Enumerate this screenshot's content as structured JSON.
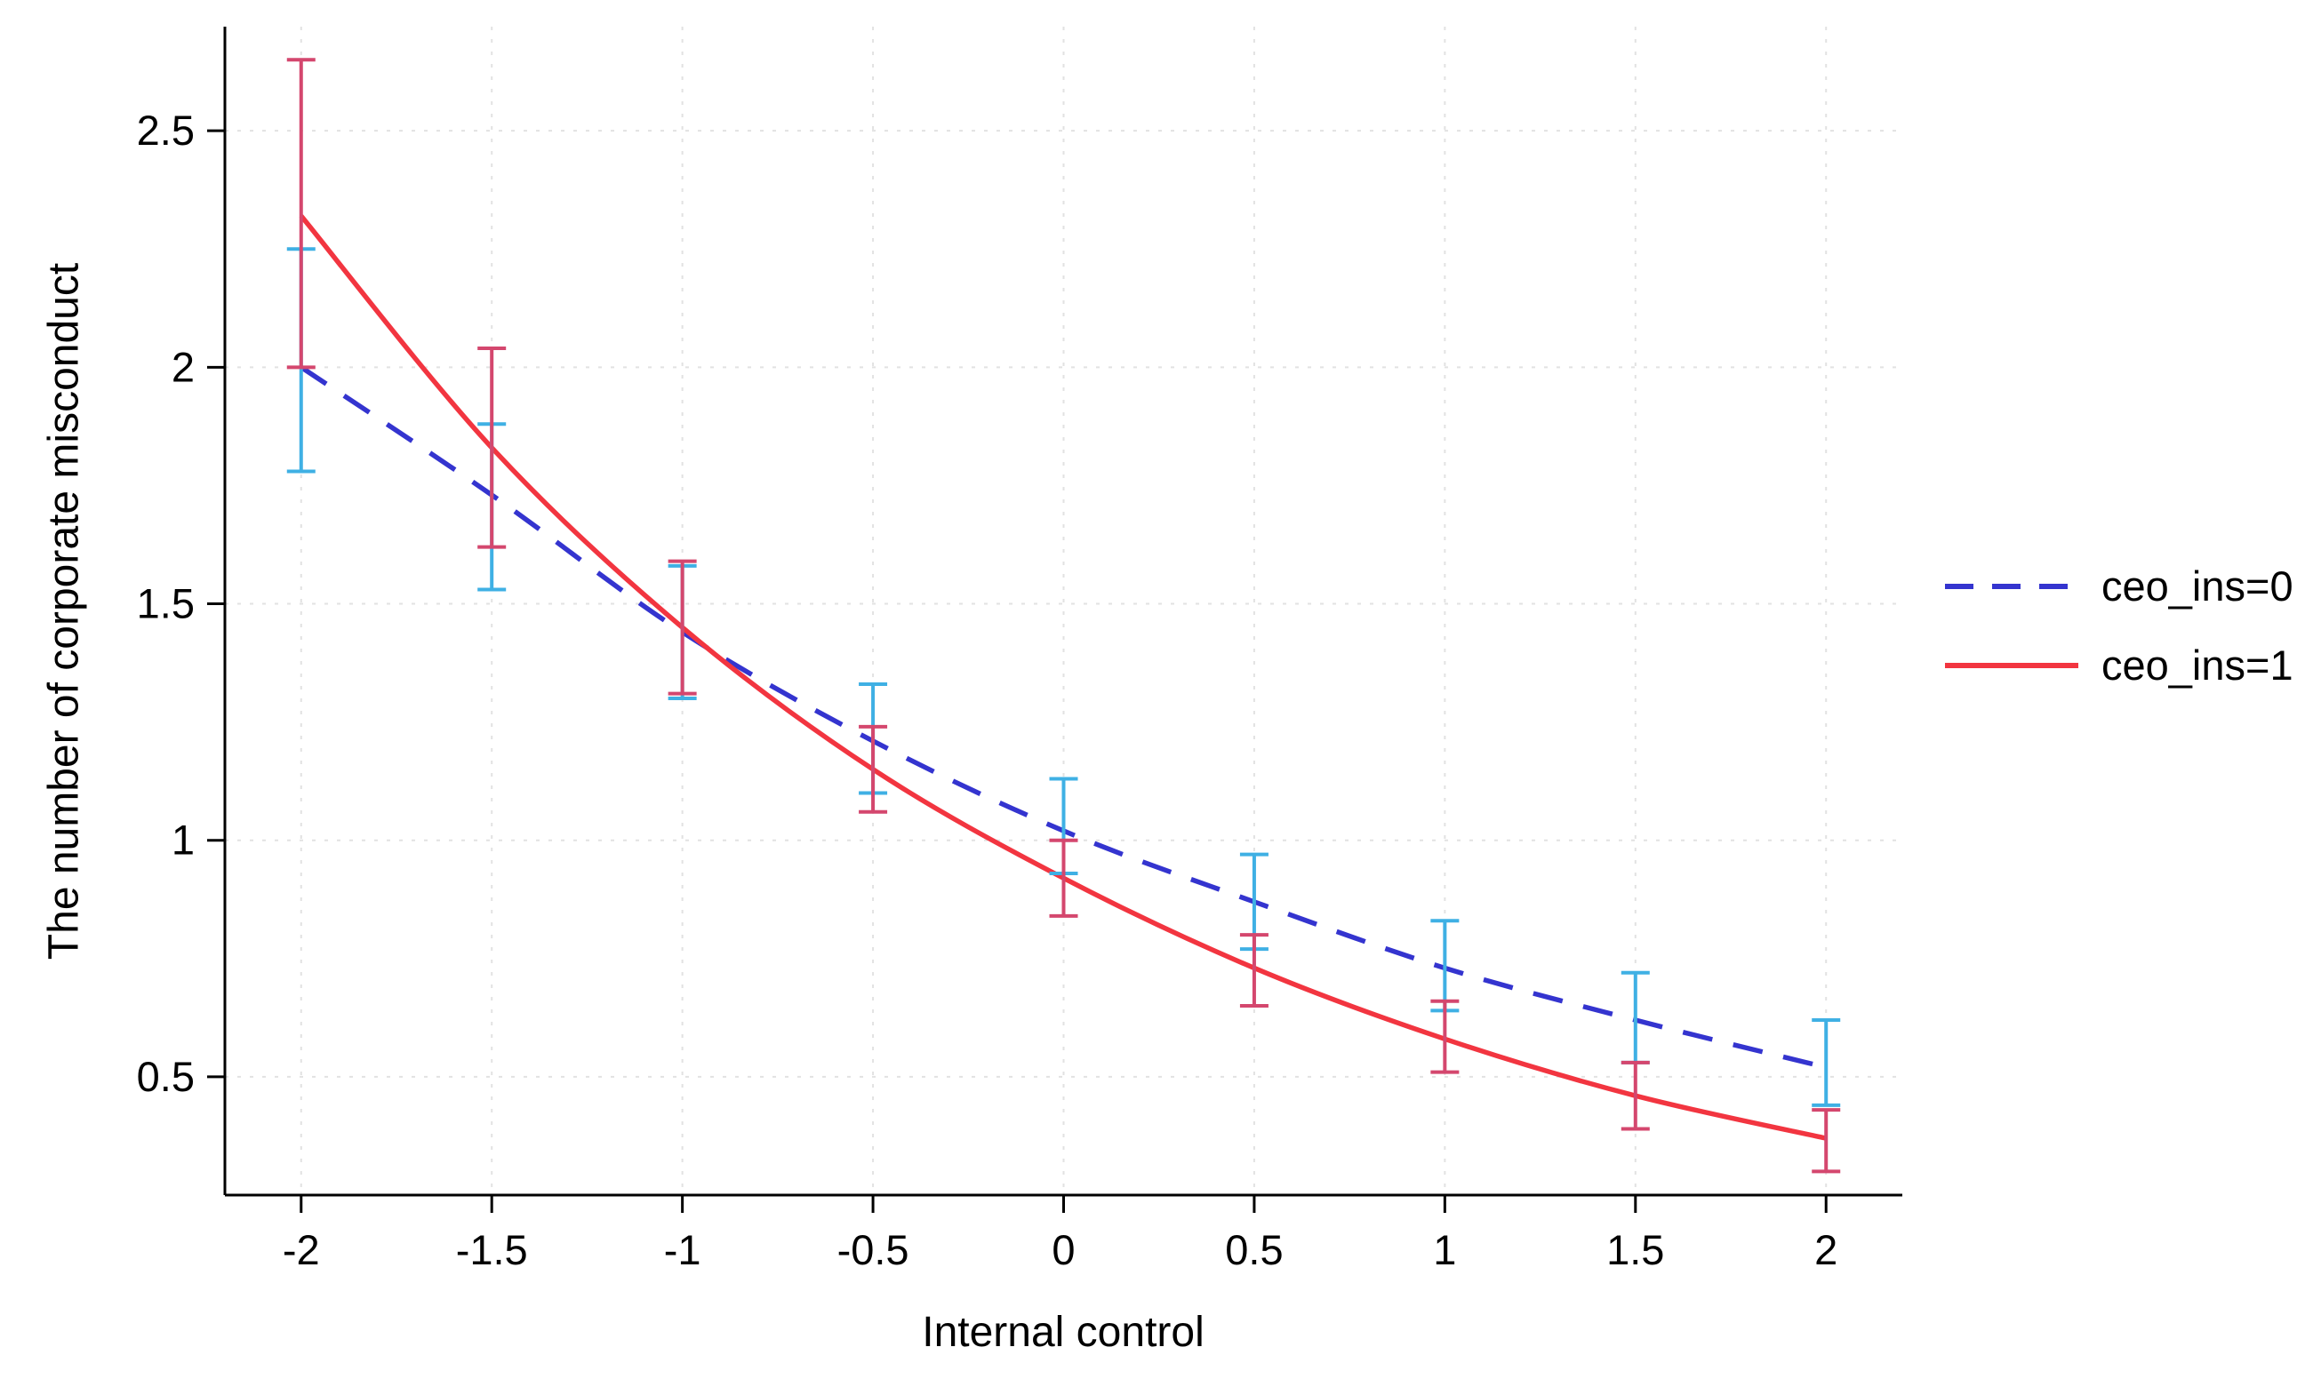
{
  "page": {
    "background": "#ffffff",
    "text_color": "#000000",
    "grid_color": "#e2e2e2",
    "axis_color": "#000000"
  },
  "chart_data": {
    "type": "line",
    "title": "",
    "xlabel": "Internal control",
    "ylabel": "The number of corporate misconduct",
    "x": [
      -2,
      -1.5,
      -1,
      -0.5,
      0,
      0.5,
      1,
      1.5,
      2
    ],
    "xticks": [
      "-2",
      "-1.5",
      "-1",
      "-0.5",
      "0",
      "0.5",
      "1",
      "1.5",
      "2"
    ],
    "yticks": [
      "0.5",
      "1",
      "1.5",
      "2",
      "2.5"
    ],
    "ytick_values": [
      0.5,
      1,
      1.5,
      2,
      2.5
    ],
    "xtick_values": [
      -2,
      -1.5,
      -1,
      -0.5,
      0,
      0.5,
      1,
      1.5,
      2
    ],
    "xlim": [
      -2.2,
      2.2
    ],
    "ylim": [
      0.25,
      2.72
    ],
    "grid": true,
    "legend_position": "right",
    "series": [
      {
        "name": "ceo_ins=0",
        "style": "dashed",
        "line_color": "#3434cf",
        "ci_color": "#3fb0e4",
        "values": [
          2.0,
          1.73,
          1.44,
          1.21,
          1.02,
          0.87,
          0.73,
          0.62,
          0.52
        ],
        "ci_low": [
          1.78,
          1.53,
          1.3,
          1.1,
          0.93,
          0.77,
          0.64,
          0.53,
          0.44
        ],
        "ci_high": [
          2.25,
          1.88,
          1.58,
          1.33,
          1.13,
          0.97,
          0.83,
          0.72,
          0.62
        ]
      },
      {
        "name": "ceo_ins=1",
        "style": "solid",
        "line_color": "#f23540",
        "ci_color": "#d4476e",
        "values": [
          2.32,
          1.83,
          1.45,
          1.15,
          0.92,
          0.73,
          0.58,
          0.46,
          0.37
        ],
        "ci_low": [
          2.0,
          1.62,
          1.31,
          1.06,
          0.84,
          0.65,
          0.51,
          0.39,
          0.3
        ],
        "ci_high": [
          2.65,
          2.04,
          1.59,
          1.24,
          1.0,
          0.8,
          0.66,
          0.53,
          0.43
        ]
      }
    ]
  }
}
